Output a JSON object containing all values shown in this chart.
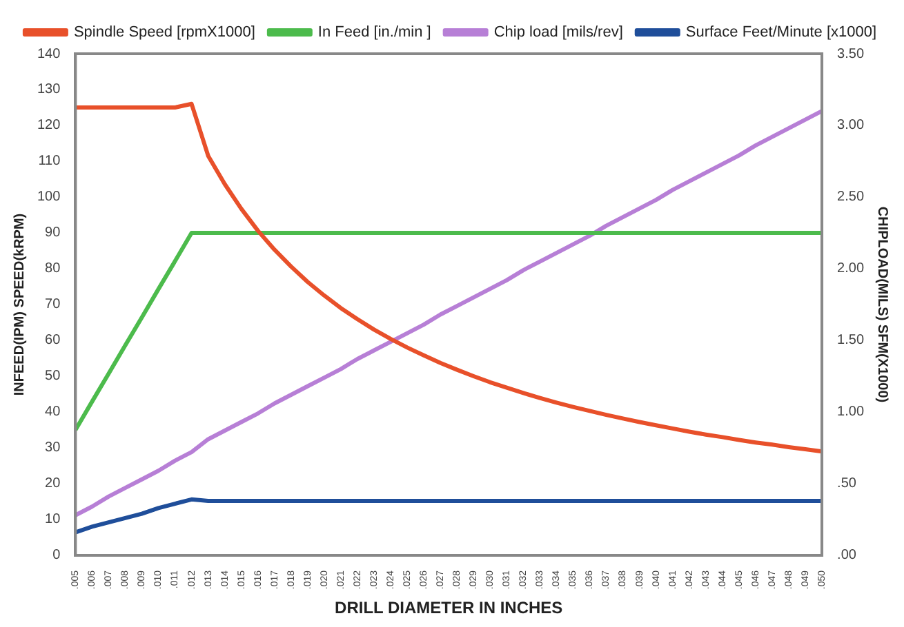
{
  "chart_data": {
    "type": "line",
    "xlabel": "DRILL DIAMETER IN INCHES",
    "ylabel": "INFEED(IPM) SPEED(kRPM)",
    "y2label": "CHIPLOAD(MILS) SFM(X1000)",
    "categories": [
      ".005",
      ".006",
      ".007",
      ".008",
      ".009",
      ".010",
      ".011",
      ".012",
      ".013",
      ".014",
      ".015",
      ".016",
      ".017",
      ".018",
      ".019",
      ".020",
      ".021",
      ".022",
      ".023",
      ".024",
      ".025",
      ".026",
      ".027",
      ".028",
      ".029",
      ".030",
      ".031",
      ".032",
      ".033",
      ".034",
      ".035",
      ".036",
      ".037",
      ".038",
      ".039",
      ".040",
      ".041",
      ".042",
      ".043",
      ".044",
      ".045",
      ".046",
      ".047",
      ".048",
      ".049",
      ".050"
    ],
    "series": [
      {
        "name": "Spindle Speed [rpmX1000]",
        "color": "#e8502a",
        "values": [
          125,
          125,
          125,
          125,
          125,
          125,
          125,
          126,
          111.5,
          103.6,
          96.7,
          90.6,
          85.3,
          80.6,
          76.3,
          72.5,
          69.0,
          65.9,
          63.0,
          60.4,
          58.0,
          55.8,
          53.7,
          51.8,
          50.0,
          48.3,
          46.8,
          45.3,
          43.9,
          42.6,
          41.4,
          40.3,
          39.2,
          38.2,
          37.2,
          36.3,
          35.4,
          34.5,
          33.7,
          33.0,
          32.2,
          31.5,
          30.9,
          30.2,
          29.6,
          29.0
        ]
      },
      {
        "name": "In Feed [in./min ]",
        "color": "#4cbb4c",
        "values": [
          35,
          42.9,
          50.7,
          58.6,
          66.4,
          74.3,
          82.1,
          90,
          90,
          90,
          90,
          90,
          90,
          90,
          90,
          90,
          90,
          90,
          90,
          90,
          90,
          90,
          90,
          90,
          90,
          90,
          90,
          90,
          90,
          90,
          90,
          90,
          90,
          90,
          90,
          90,
          90,
          90,
          90,
          90,
          90,
          90,
          90,
          90,
          90,
          90
        ]
      },
      {
        "name": "Chip load [mils/rev]",
        "color": "#b77fd6",
        "axis": "y2",
        "values": [
          0.28,
          0.34,
          0.41,
          0.47,
          0.53,
          0.59,
          0.66,
          0.72,
          0.81,
          0.87,
          0.93,
          0.99,
          1.06,
          1.12,
          1.18,
          1.24,
          1.3,
          1.37,
          1.43,
          1.49,
          1.55,
          1.61,
          1.68,
          1.74,
          1.8,
          1.86,
          1.92,
          1.99,
          2.05,
          2.11,
          2.17,
          2.23,
          2.3,
          2.36,
          2.42,
          2.48,
          2.55,
          2.61,
          2.67,
          2.73,
          2.79,
          2.86,
          2.92,
          2.98,
          3.04,
          3.1
        ]
      },
      {
        "name": "Surface Feet/Minute [x1000]",
        "color": "#1f4e9a",
        "axis": "y2",
        "values": [
          0.16,
          0.2,
          0.23,
          0.26,
          0.29,
          0.33,
          0.36,
          0.39,
          0.38,
          0.38,
          0.38,
          0.38,
          0.38,
          0.38,
          0.38,
          0.38,
          0.38,
          0.38,
          0.38,
          0.38,
          0.38,
          0.38,
          0.38,
          0.38,
          0.38,
          0.38,
          0.38,
          0.38,
          0.38,
          0.38,
          0.38,
          0.38,
          0.38,
          0.38,
          0.38,
          0.38,
          0.38,
          0.38,
          0.38,
          0.38,
          0.38,
          0.38,
          0.38,
          0.38,
          0.38,
          0.38
        ]
      }
    ],
    "ylim": [
      0,
      140
    ],
    "yticks": [
      0,
      10,
      20,
      30,
      40,
      50,
      60,
      70,
      80,
      90,
      100,
      110,
      120,
      130,
      140
    ],
    "y2lim": [
      0,
      3.5
    ],
    "y2ticks": [
      {
        "value": 0,
        "label": ".00"
      },
      {
        "value": 0.5,
        "label": ".50"
      },
      {
        "value": 1,
        "label": "1.00"
      },
      {
        "value": 1.5,
        "label": "1.50"
      },
      {
        "value": 2,
        "label": "2.00"
      },
      {
        "value": 2.5,
        "label": "2.50"
      },
      {
        "value": 3,
        "label": "3.00"
      },
      {
        "value": 3.5,
        "label": "3.50"
      }
    ],
    "grid": false,
    "legend": "top",
    "marker": "none",
    "line_style": "solid"
  }
}
